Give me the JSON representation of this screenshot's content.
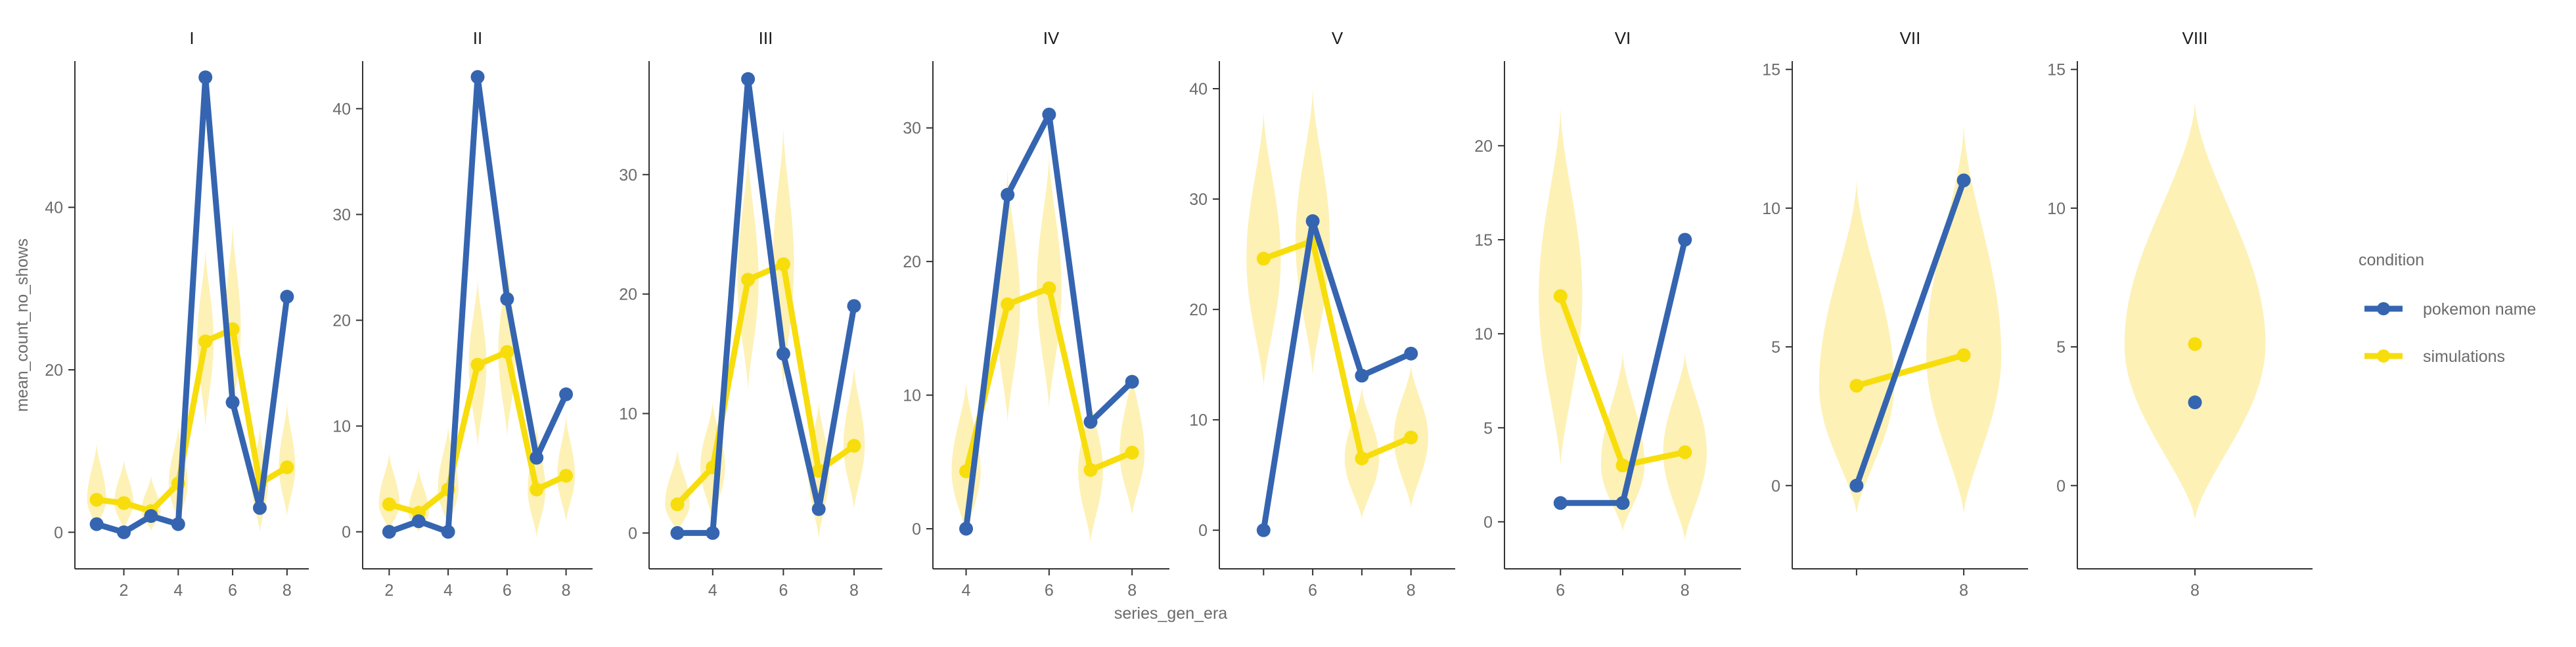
{
  "chart_data": {
    "type": "line",
    "xlabel": "series_gen_era",
    "ylabel": "mean_count_no_shows",
    "legend": {
      "title": "condition",
      "placement": "right",
      "entries": [
        "pokemon name",
        "simulations"
      ]
    },
    "colors": {
      "pokemon name": "#3565b0",
      "simulations": "#f7dd0c",
      "violin": "#fdf1b6"
    },
    "grid": false,
    "panels": [
      {
        "title": "I",
        "xlim": [
          0.2,
          8.8
        ],
        "ylim": [
          -4.5,
          58
        ],
        "xticks": [
          2,
          4,
          6,
          8
        ],
        "yticks": [
          0,
          20,
          40
        ],
        "series": [
          {
            "name": "pokemon name",
            "x": [
              1,
              2,
              3,
              4,
              5,
              6,
              7,
              8
            ],
            "y": [
              1,
              0,
              2,
              1,
              56,
              16,
              3,
              29
            ]
          },
          {
            "name": "simulations",
            "x": [
              1,
              2,
              3,
              4,
              5,
              6,
              7,
              8
            ],
            "y": [
              4,
              3.6,
              2.6,
              6,
              23.5,
              25,
              6,
              8
            ]
          }
        ],
        "violins": [
          {
            "x": 1,
            "center": 4,
            "lo": 0.5,
            "hi": 11,
            "w": 0.35
          },
          {
            "x": 2,
            "center": 3.6,
            "lo": 0.3,
            "hi": 9,
            "w": 0.35
          },
          {
            "x": 3,
            "center": 2.6,
            "lo": 0.2,
            "hi": 7,
            "w": 0.35
          },
          {
            "x": 4,
            "center": 6,
            "lo": 1,
            "hi": 13,
            "w": 0.35
          },
          {
            "x": 5,
            "center": 23.5,
            "lo": 13,
            "hi": 35,
            "w": 0.3
          },
          {
            "x": 6,
            "center": 25,
            "lo": 14,
            "hi": 38,
            "w": 0.3
          },
          {
            "x": 7,
            "center": 6,
            "lo": 0,
            "hi": 13,
            "w": 0.3
          },
          {
            "x": 8,
            "center": 8,
            "lo": 2,
            "hi": 16,
            "w": 0.3
          }
        ]
      },
      {
        "title": "II",
        "xlim": [
          1.1,
          8.9
        ],
        "ylim": [
          -3.5,
          44.5
        ],
        "xticks": [
          2,
          4,
          6,
          8
        ],
        "yticks": [
          0,
          10,
          20,
          30,
          40
        ],
        "series": [
          {
            "name": "pokemon name",
            "x": [
              2,
              3,
              4,
              5,
              6,
              7,
              8
            ],
            "y": [
              0,
              1,
              0,
              43,
              22,
              7,
              13
            ]
          },
          {
            "name": "simulations",
            "x": [
              2,
              3,
              4,
              5,
              6,
              7,
              8
            ],
            "y": [
              2.6,
              1.8,
              4,
              15.8,
              17,
              4,
              5.3
            ]
          }
        ],
        "violins": [
          {
            "x": 2,
            "center": 2.6,
            "lo": 0.1,
            "hi": 7.5,
            "w": 0.35
          },
          {
            "x": 3,
            "center": 1.8,
            "lo": 0,
            "hi": 6,
            "w": 0.35
          },
          {
            "x": 4,
            "center": 4,
            "lo": 0.5,
            "hi": 10,
            "w": 0.35
          },
          {
            "x": 5,
            "center": 15.8,
            "lo": 8,
            "hi": 24,
            "w": 0.3
          },
          {
            "x": 6,
            "center": 17,
            "lo": 9,
            "hi": 26,
            "w": 0.3
          },
          {
            "x": 7,
            "center": 4,
            "lo": -0.5,
            "hi": 10,
            "w": 0.3
          },
          {
            "x": 8,
            "center": 5.3,
            "lo": 1,
            "hi": 11,
            "w": 0.3
          }
        ]
      },
      {
        "title": "III",
        "xlim": [
          2.2,
          8.8
        ],
        "ylim": [
          -3,
          39.5
        ],
        "xticks": [
          4,
          6,
          8
        ],
        "yticks": [
          0,
          10,
          20,
          30
        ],
        "series": [
          {
            "name": "pokemon name",
            "x": [
              3,
              4,
              5,
              6,
              7,
              8
            ],
            "y": [
              0,
              0,
              38,
              15,
              2,
              19
            ]
          },
          {
            "name": "simulations",
            "x": [
              3,
              4,
              5,
              6,
              7,
              8
            ],
            "y": [
              2.4,
              5.5,
              21.2,
              22.5,
              5.2,
              7.3
            ]
          }
        ],
        "violins": [
          {
            "x": 3,
            "center": 2.4,
            "lo": 0,
            "hi": 7,
            "w": 0.35
          },
          {
            "x": 4,
            "center": 5.5,
            "lo": 1,
            "hi": 11,
            "w": 0.35
          },
          {
            "x": 5,
            "center": 21.2,
            "lo": 12,
            "hi": 32,
            "w": 0.3
          },
          {
            "x": 6,
            "center": 22.5,
            "lo": 12,
            "hi": 34,
            "w": 0.3
          },
          {
            "x": 7,
            "center": 5.2,
            "lo": -0.5,
            "hi": 11,
            "w": 0.3
          },
          {
            "x": 8,
            "center": 7.3,
            "lo": 2,
            "hi": 14,
            "w": 0.3
          }
        ]
      },
      {
        "title": "IV",
        "xlim": [
          3.2,
          8.9
        ],
        "ylim": [
          -3,
          35
        ],
        "xticks": [
          4,
          6,
          8
        ],
        "yticks": [
          0,
          10,
          20,
          30
        ],
        "series": [
          {
            "name": "pokemon name",
            "x": [
              4,
              5,
              6,
              7,
              8
            ],
            "y": [
              0,
              25,
              31,
              8,
              11
            ]
          },
          {
            "name": "simulations",
            "x": [
              4,
              5,
              6,
              7,
              8
            ],
            "y": [
              4.3,
              16.8,
              18,
              4.4,
              5.7
            ]
          }
        ],
        "violins": [
          {
            "x": 4,
            "center": 4.3,
            "lo": -0.5,
            "hi": 11,
            "w": 0.35
          },
          {
            "x": 5,
            "center": 16.8,
            "lo": 8,
            "hi": 27,
            "w": 0.3
          },
          {
            "x": 6,
            "center": 18,
            "lo": 9,
            "hi": 28,
            "w": 0.3
          },
          {
            "x": 7,
            "center": 4.4,
            "lo": -1,
            "hi": 10,
            "w": 0.3
          },
          {
            "x": 8,
            "center": 5.7,
            "lo": 1,
            "hi": 12,
            "w": 0.3
          }
        ]
      },
      {
        "title": "V",
        "xlim": [
          4.1,
          8.9
        ],
        "ylim": [
          -3.5,
          42.5
        ],
        "xticks": [
          5,
          6,
          7,
          8
        ],
        "xticklabels": [
          "",
          "6",
          "",
          "8"
        ],
        "yticks": [
          0,
          10,
          20,
          30,
          40
        ],
        "series": [
          {
            "name": "pokemon name",
            "x": [
              5,
              6,
              7,
              8
            ],
            "y": [
              0,
              28,
              14,
              16
            ]
          },
          {
            "name": "simulations",
            "x": [
              5,
              6,
              7,
              8
            ],
            "y": [
              24.6,
              26.2,
              6.5,
              8.4
            ]
          }
        ],
        "violins": [
          {
            "x": 5,
            "center": 24.6,
            "lo": 13,
            "hi": 38,
            "w": 0.35
          },
          {
            "x": 6,
            "center": 26.2,
            "lo": 14,
            "hi": 40,
            "w": 0.35
          },
          {
            "x": 7,
            "center": 6.5,
            "lo": 1,
            "hi": 13,
            "w": 0.35
          },
          {
            "x": 8,
            "center": 8.4,
            "lo": 2,
            "hi": 15,
            "w": 0.35
          }
        ]
      },
      {
        "title": "VI",
        "xlim": [
          5.1,
          8.9
        ],
        "ylim": [
          -2.5,
          24.5
        ],
        "xticks": [
          6,
          7,
          8
        ],
        "xticklabels": [
          "6",
          "",
          "8"
        ],
        "yticks": [
          0,
          5,
          10,
          15,
          20
        ],
        "series": [
          {
            "name": "pokemon name",
            "x": [
              6,
              7,
              8
            ],
            "y": [
              1,
              1,
              15
            ]
          },
          {
            "name": "simulations",
            "x": [
              6,
              7,
              8
            ],
            "y": [
              12,
              3,
              3.7
            ]
          }
        ],
        "violins": [
          {
            "x": 6,
            "center": 12,
            "lo": 3,
            "hi": 22,
            "w": 0.35
          },
          {
            "x": 7,
            "center": 3,
            "lo": -0.5,
            "hi": 9,
            "w": 0.35
          },
          {
            "x": 8,
            "center": 3.7,
            "lo": -1,
            "hi": 9,
            "w": 0.35
          }
        ]
      },
      {
        "title": "VII",
        "xlim": [
          6.4,
          8.6
        ],
        "ylim": [
          -3,
          15.3
        ],
        "xticks": [
          7,
          8
        ],
        "xticklabels": [
          "",
          "8"
        ],
        "yticks": [
          0,
          5,
          10,
          15
        ],
        "series": [
          {
            "name": "pokemon name",
            "x": [
              7,
              8
            ],
            "y": [
              0,
              11
            ]
          },
          {
            "name": "simulations",
            "x": [
              7,
              8
            ],
            "y": [
              3.6,
              4.7
            ]
          }
        ],
        "violins": [
          {
            "x": 7,
            "center": 3.6,
            "lo": -1,
            "hi": 11,
            "w": 0.35
          },
          {
            "x": 8,
            "center": 4.7,
            "lo": -1,
            "hi": 13,
            "w": 0.35
          }
        ]
      },
      {
        "title": "VIII",
        "xlim": [
          7.4,
          8.6
        ],
        "ylim": [
          -3,
          15.3
        ],
        "xticks": [
          8
        ],
        "yticks": [
          0,
          5,
          10,
          15
        ],
        "series": [
          {
            "name": "pokemon name",
            "x": [
              8
            ],
            "y": [
              3
            ]
          },
          {
            "name": "simulations",
            "x": [
              8
            ],
            "y": [
              5.1
            ]
          }
        ],
        "violins": [
          {
            "x": 8,
            "center": 5.1,
            "lo": -1.2,
            "hi": 13.8,
            "w": 0.36
          }
        ]
      }
    ]
  }
}
